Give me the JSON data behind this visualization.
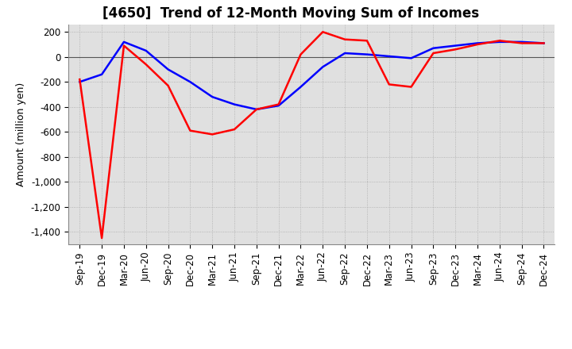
{
  "title": "[4650]  Trend of 12-Month Moving Sum of Incomes",
  "ylabel": "Amount (million yen)",
  "ylim": [
    -1500,
    260
  ],
  "yticks": [
    200,
    0,
    -200,
    -400,
    -600,
    -800,
    -1000,
    -1200,
    -1400
  ],
  "x_labels": [
    "Sep-19",
    "Dec-19",
    "Mar-20",
    "Jun-20",
    "Sep-20",
    "Dec-20",
    "Mar-21",
    "Jun-21",
    "Sep-21",
    "Dec-21",
    "Mar-22",
    "Jun-22",
    "Sep-22",
    "Dec-22",
    "Mar-23",
    "Jun-23",
    "Sep-23",
    "Dec-23",
    "Mar-24",
    "Jun-24",
    "Sep-24",
    "Dec-24"
  ],
  "ordinary_income": [
    -200,
    -140,
    120,
    50,
    -100,
    -200,
    -320,
    -380,
    -420,
    -390,
    -240,
    -80,
    30,
    20,
    5,
    -10,
    70,
    90,
    110,
    120,
    120,
    110
  ],
  "net_income": [
    -180,
    -1450,
    90,
    -60,
    -230,
    -590,
    -620,
    -580,
    -420,
    -380,
    20,
    200,
    140,
    130,
    -220,
    -240,
    30,
    60,
    100,
    130,
    110,
    110
  ],
  "ordinary_color": "#0000FF",
  "net_color": "#FF0000",
  "background_color": "#E0E0E0",
  "grid_color": "#AAAAAA",
  "title_fontsize": 12,
  "label_fontsize": 9,
  "tick_fontsize": 8.5,
  "legend_fontsize": 10
}
